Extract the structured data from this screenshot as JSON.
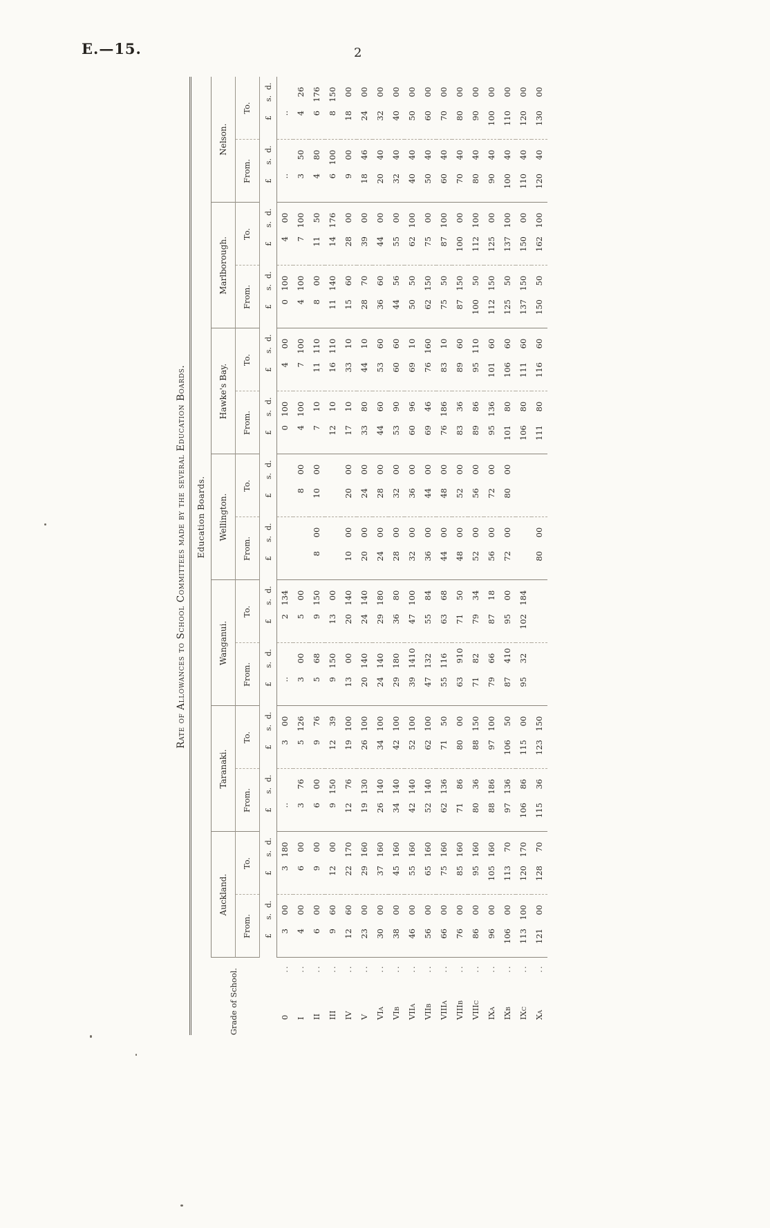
{
  "page": {
    "doc_ref": "E.—15.",
    "page_number": "2"
  },
  "table": {
    "title": "Rate of Allowances to School Committees made by the several Education Boards.",
    "group_header": "Education Boards.",
    "grade_col_header": "Grade of School.",
    "from_label": "From.",
    "to_label": "To.",
    "currency": [
      "£",
      "s.",
      "d."
    ],
    "blank_dots": "..",
    "grades": [
      {
        "main": "0",
        "sub": ""
      },
      {
        "main": "I",
        "sub": ""
      },
      {
        "main": "II",
        "sub": ""
      },
      {
        "main": "III",
        "sub": ""
      },
      {
        "main": "IV",
        "sub": ""
      },
      {
        "main": "V",
        "sub": ""
      },
      {
        "main": "VI",
        "sub": "A"
      },
      {
        "main": "VI",
        "sub": "B"
      },
      {
        "main": "VII",
        "sub": "A"
      },
      {
        "main": "VII",
        "sub": "B"
      },
      {
        "main": "VIII",
        "sub": "A"
      },
      {
        "main": "VIII",
        "sub": "B"
      },
      {
        "main": "VIII",
        "sub": "C"
      },
      {
        "main": "IX",
        "sub": "A"
      },
      {
        "main": "IX",
        "sub": "B"
      },
      {
        "main": "IX",
        "sub": "C"
      },
      {
        "main": "X",
        "sub": "A"
      }
    ],
    "boards": [
      {
        "name": "Auckland.",
        "from": [
          [
            3,
            0,
            0
          ],
          [
            4,
            0,
            0
          ],
          [
            6,
            0,
            0
          ],
          [
            9,
            6,
            0
          ],
          [
            12,
            6,
            0
          ],
          [
            23,
            0,
            0
          ],
          [
            30,
            0,
            0
          ],
          [
            38,
            0,
            0
          ],
          [
            46,
            0,
            0
          ],
          [
            56,
            0,
            0
          ],
          [
            66,
            0,
            0
          ],
          [
            76,
            0,
            0
          ],
          [
            86,
            0,
            0
          ],
          [
            96,
            0,
            0
          ],
          [
            106,
            0,
            0
          ],
          [
            113,
            10,
            0
          ],
          [
            121,
            0,
            0
          ]
        ],
        "to": [
          [
            3,
            18,
            0
          ],
          [
            6,
            0,
            0
          ],
          [
            9,
            0,
            0
          ],
          [
            12,
            0,
            0
          ],
          [
            22,
            17,
            0
          ],
          [
            29,
            16,
            0
          ],
          [
            37,
            16,
            0
          ],
          [
            45,
            16,
            0
          ],
          [
            55,
            16,
            0
          ],
          [
            65,
            16,
            0
          ],
          [
            75,
            16,
            0
          ],
          [
            85,
            16,
            0
          ],
          [
            95,
            16,
            0
          ],
          [
            105,
            16,
            0
          ],
          [
            113,
            7,
            0
          ],
          [
            120,
            17,
            0
          ],
          [
            128,
            7,
            0
          ]
        ]
      },
      {
        "name": "Taranaki.",
        "from": [
          "..",
          [
            3,
            7,
            6
          ],
          [
            6,
            0,
            0
          ],
          [
            9,
            15,
            0
          ],
          [
            12,
            7,
            6
          ],
          [
            19,
            13,
            0
          ],
          [
            26,
            14,
            0
          ],
          [
            34,
            14,
            0
          ],
          [
            42,
            14,
            0
          ],
          [
            52,
            14,
            0
          ],
          [
            62,
            13,
            6
          ],
          [
            71,
            8,
            6
          ],
          [
            80,
            3,
            6
          ],
          [
            88,
            18,
            6
          ],
          [
            97,
            13,
            6
          ],
          [
            106,
            8,
            6
          ],
          [
            115,
            3,
            6
          ]
        ],
        "to": [
          [
            3,
            0,
            0
          ],
          [
            5,
            12,
            6
          ],
          [
            9,
            7,
            6
          ],
          [
            12,
            3,
            9
          ],
          [
            19,
            10,
            0
          ],
          [
            26,
            10,
            0
          ],
          [
            34,
            10,
            0
          ],
          [
            42,
            10,
            0
          ],
          [
            52,
            10,
            0
          ],
          [
            62,
            10,
            0
          ],
          [
            71,
            5,
            0
          ],
          [
            80,
            0,
            0
          ],
          [
            88,
            15,
            0
          ],
          [
            97,
            10,
            0
          ],
          [
            106,
            5,
            0
          ],
          [
            115,
            0,
            0
          ],
          [
            123,
            15,
            0
          ]
        ]
      },
      {
        "name": "Wanganui.",
        "from": [
          "..",
          [
            3,
            0,
            0
          ],
          [
            5,
            6,
            8
          ],
          [
            9,
            15,
            0
          ],
          [
            13,
            0,
            0
          ],
          [
            20,
            14,
            0
          ],
          [
            24,
            14,
            0
          ],
          [
            29,
            18,
            0
          ],
          [
            39,
            14,
            10
          ],
          [
            47,
            13,
            2
          ],
          [
            55,
            11,
            6
          ],
          [
            63,
            9,
            10
          ],
          [
            71,
            8,
            2
          ],
          [
            79,
            6,
            6
          ],
          [
            87,
            4,
            10
          ],
          [
            95,
            3,
            2
          ],
          null
        ],
        "to": [
          [
            2,
            13,
            4
          ],
          [
            5,
            0,
            0
          ],
          [
            9,
            15,
            0
          ],
          [
            13,
            0,
            0
          ],
          [
            20,
            14,
            0
          ],
          [
            24,
            14,
            0
          ],
          [
            29,
            18,
            0
          ],
          [
            36,
            8,
            0
          ],
          [
            47,
            10,
            0
          ],
          [
            55,
            8,
            4
          ],
          [
            63,
            6,
            8
          ],
          [
            71,
            5,
            0
          ],
          [
            79,
            3,
            4
          ],
          [
            87,
            1,
            8
          ],
          [
            95,
            0,
            0
          ],
          [
            102,
            18,
            4
          ],
          null
        ]
      },
      {
        "name": "Wellington.",
        "from": [
          null,
          null,
          [
            8,
            0,
            0
          ],
          null,
          [
            10,
            0,
            0
          ],
          [
            20,
            0,
            0
          ],
          [
            24,
            0,
            0
          ],
          [
            28,
            0,
            0
          ],
          [
            32,
            0,
            0
          ],
          [
            36,
            0,
            0
          ],
          [
            44,
            0,
            0
          ],
          [
            48,
            0,
            0
          ],
          [
            52,
            0,
            0
          ],
          [
            56,
            0,
            0
          ],
          [
            72,
            0,
            0
          ],
          null,
          [
            80,
            0,
            0
          ]
        ],
        "to": [
          null,
          [
            8,
            0,
            0
          ],
          [
            10,
            0,
            0
          ],
          null,
          [
            20,
            0,
            0
          ],
          [
            24,
            0,
            0
          ],
          [
            28,
            0,
            0
          ],
          [
            32,
            0,
            0
          ],
          [
            36,
            0,
            0
          ],
          [
            44,
            0,
            0
          ],
          [
            48,
            0,
            0
          ],
          [
            52,
            0,
            0
          ],
          [
            56,
            0,
            0
          ],
          [
            72,
            0,
            0
          ],
          [
            80,
            0,
            0
          ],
          null,
          null
        ]
      },
      {
        "name": "Hawke's Bay.",
        "from": [
          [
            0,
            10,
            0
          ],
          [
            4,
            10,
            0
          ],
          [
            7,
            1,
            0
          ],
          [
            12,
            1,
            0
          ],
          [
            17,
            1,
            0
          ],
          [
            33,
            8,
            0
          ],
          [
            44,
            6,
            0
          ],
          [
            53,
            9,
            0
          ],
          [
            60,
            9,
            6
          ],
          [
            69,
            4,
            6
          ],
          [
            76,
            18,
            6
          ],
          [
            83,
            3,
            6
          ],
          [
            89,
            8,
            6
          ],
          [
            95,
            13,
            6
          ],
          [
            101,
            8,
            0
          ],
          [
            106,
            8,
            0
          ],
          [
            111,
            8,
            0
          ]
        ],
        "to": [
          [
            4,
            0,
            0
          ],
          [
            7,
            10,
            0
          ],
          [
            11,
            11,
            0
          ],
          [
            16,
            11,
            0
          ],
          [
            33,
            1,
            0
          ],
          [
            44,
            1,
            0
          ],
          [
            53,
            6,
            0
          ],
          [
            60,
            6,
            0
          ],
          [
            69,
            1,
            0
          ],
          [
            76,
            16,
            0
          ],
          [
            83,
            1,
            0
          ],
          [
            89,
            6,
            0
          ],
          [
            95,
            11,
            0
          ],
          [
            101,
            6,
            0
          ],
          [
            106,
            6,
            0
          ],
          [
            111,
            6,
            0
          ],
          [
            116,
            6,
            0
          ]
        ]
      },
      {
        "name": "Marlborough.",
        "from": [
          [
            0,
            10,
            0
          ],
          [
            4,
            10,
            0
          ],
          [
            8,
            0,
            0
          ],
          [
            11,
            14,
            0
          ],
          [
            15,
            6,
            0
          ],
          [
            28,
            7,
            0
          ],
          [
            36,
            6,
            0
          ],
          [
            44,
            5,
            6
          ],
          [
            50,
            5,
            0
          ],
          [
            62,
            15,
            0
          ],
          [
            75,
            5,
            0
          ],
          [
            87,
            15,
            0
          ],
          [
            100,
            5,
            0
          ],
          [
            112,
            15,
            0
          ],
          [
            125,
            5,
            0
          ],
          [
            137,
            15,
            0
          ],
          [
            150,
            5,
            0
          ]
        ],
        "to": [
          [
            4,
            0,
            0
          ],
          [
            7,
            10,
            0
          ],
          [
            11,
            5,
            0
          ],
          [
            14,
            17,
            6
          ],
          [
            28,
            0,
            0
          ],
          [
            39,
            0,
            0
          ],
          [
            44,
            0,
            0
          ],
          [
            55,
            0,
            0
          ],
          [
            62,
            10,
            0
          ],
          [
            75,
            0,
            0
          ],
          [
            87,
            10,
            0
          ],
          [
            100,
            0,
            0
          ],
          [
            112,
            10,
            0
          ],
          [
            125,
            0,
            0
          ],
          [
            137,
            10,
            0
          ],
          [
            150,
            0,
            0
          ],
          [
            162,
            10,
            0
          ]
        ]
      },
      {
        "name": "Nelson.",
        "from": [
          "..",
          [
            3,
            5,
            0
          ],
          [
            4,
            8,
            0
          ],
          [
            6,
            10,
            0
          ],
          [
            9,
            0,
            0
          ],
          [
            18,
            4,
            6
          ],
          [
            20,
            4,
            0
          ],
          [
            32,
            4,
            0
          ],
          [
            40,
            4,
            0
          ],
          [
            50,
            4,
            0
          ],
          [
            60,
            4,
            0
          ],
          [
            70,
            4,
            0
          ],
          [
            80,
            4,
            0
          ],
          [
            90,
            4,
            0
          ],
          [
            100,
            4,
            0
          ],
          [
            110,
            4,
            0
          ],
          [
            120,
            4,
            0
          ]
        ],
        "to": [
          "..",
          [
            4,
            2,
            6
          ],
          [
            6,
            17,
            6
          ],
          [
            8,
            15,
            0
          ],
          [
            18,
            0,
            0
          ],
          [
            24,
            0,
            0
          ],
          [
            32,
            0,
            0
          ],
          [
            40,
            0,
            0
          ],
          [
            50,
            0,
            0
          ],
          [
            60,
            0,
            0
          ],
          [
            70,
            0,
            0
          ],
          [
            80,
            0,
            0
          ],
          [
            90,
            0,
            0
          ],
          [
            100,
            0,
            0
          ],
          [
            110,
            0,
            0
          ],
          [
            120,
            0,
            0
          ],
          [
            130,
            0,
            0
          ]
        ]
      }
    ]
  }
}
